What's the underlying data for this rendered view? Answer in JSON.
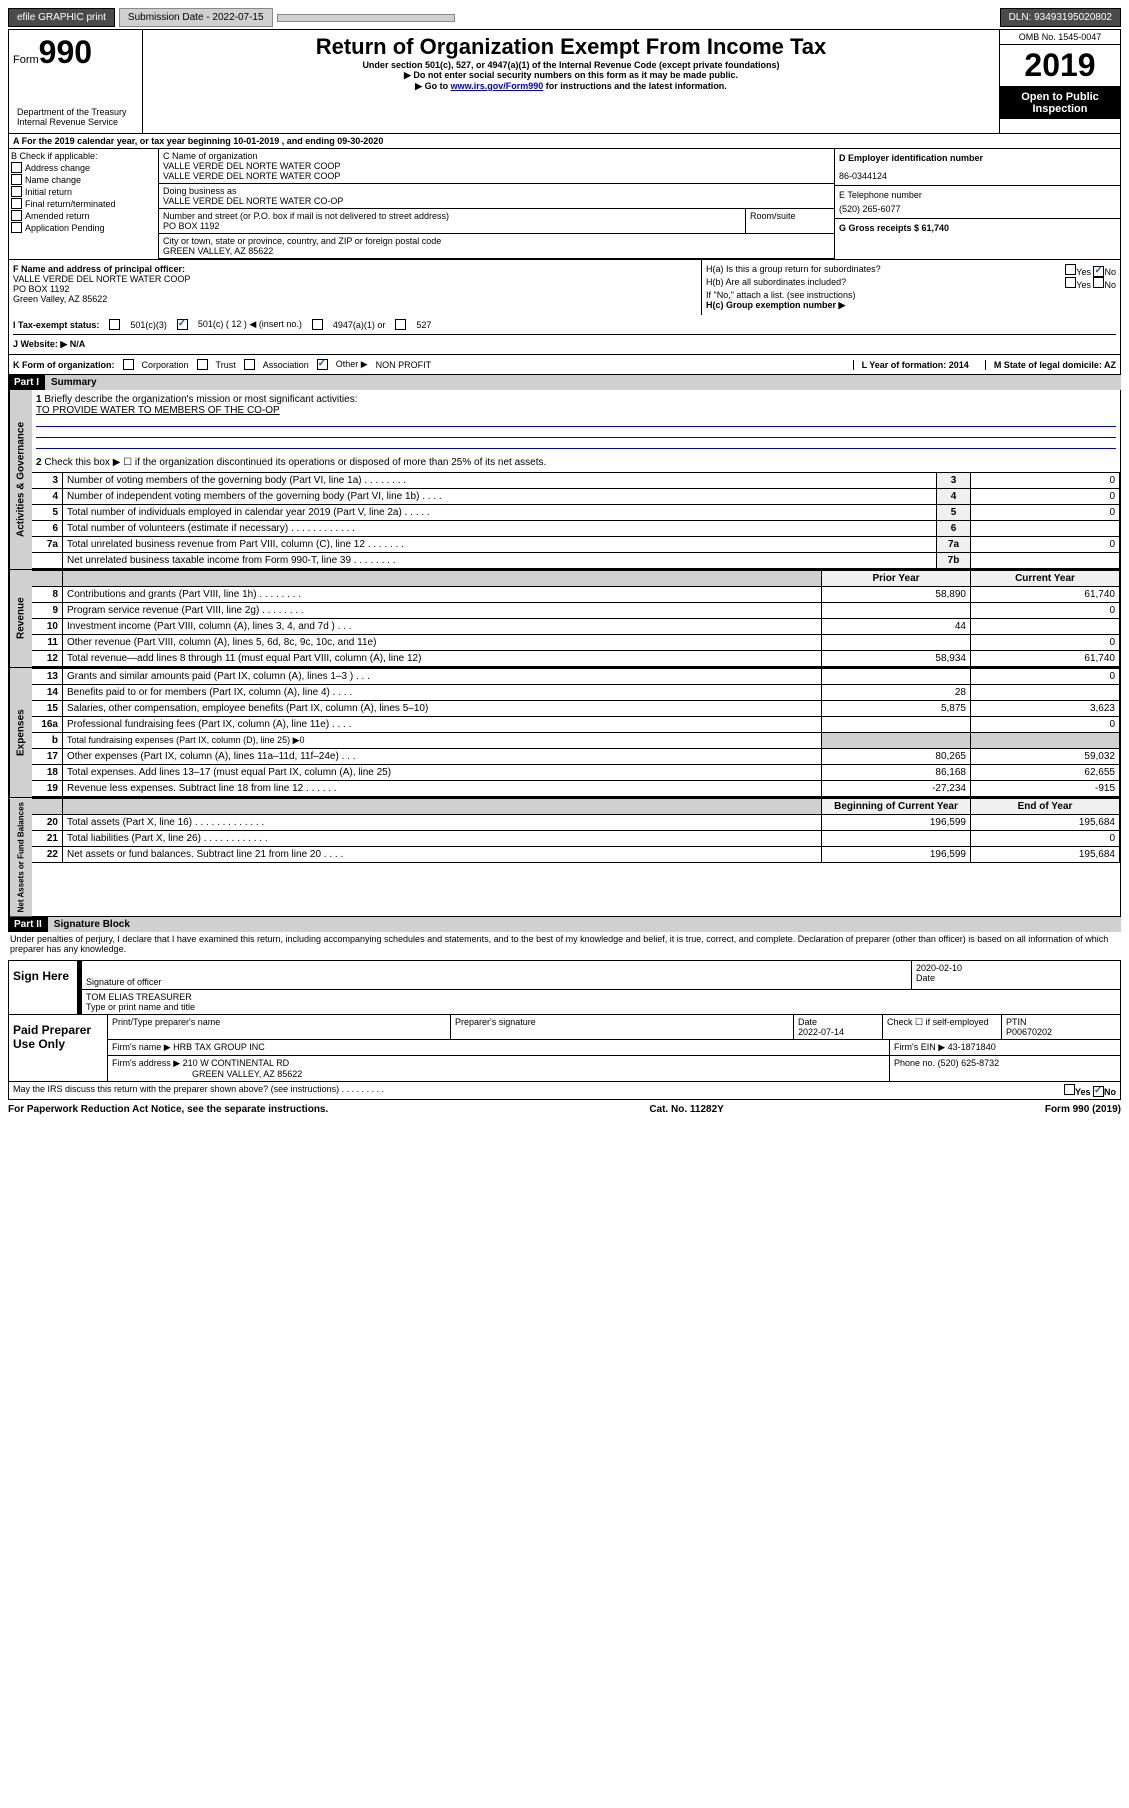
{
  "topbar": {
    "efile": "efile GRAPHIC print",
    "submission_label": "Submission Date - 2022-07-15",
    "dln": "DLN: 93493195020802"
  },
  "header": {
    "form_word": "Form",
    "form_num": "990",
    "title": "Return of Organization Exempt From Income Tax",
    "sub1": "Under section 501(c), 527, or 4947(a)(1) of the Internal Revenue Code (except private foundations)",
    "sub2": "▶ Do not enter social security numbers on this form as it may be made public.",
    "sub3_pre": "▶ Go to ",
    "sub3_link": "www.irs.gov/Form990",
    "sub3_post": " for instructions and the latest information.",
    "omb": "OMB No. 1545-0047",
    "year": "2019",
    "open": "Open to Public Inspection",
    "dept": "Department of the Treasury\nInternal Revenue Service"
  },
  "line_a": "A For the 2019 calendar year, or tax year beginning 10-01-2019    , and ending 09-30-2020",
  "col_b": {
    "label": "B Check if applicable:",
    "items": [
      "Address change",
      "Name change",
      "Initial return",
      "Final return/terminated",
      "Amended return",
      "Application Pending"
    ]
  },
  "col_c": {
    "name_label": "C Name of organization",
    "name1": "VALLE VERDE DEL NORTE WATER COOP",
    "name2": "VALLE VERDE DEL NORTE WATER COOP",
    "dba_label": "Doing business as",
    "dba": "VALLE VERDE DEL NORTE WATER CO-OP",
    "addr_label": "Number and street (or P.O. box if mail is not delivered to street address)",
    "addr": "PO BOX 1192",
    "room_label": "Room/suite",
    "city_label": "City or town, state or province, country, and ZIP or foreign postal code",
    "city": "GREEN VALLEY, AZ  85622"
  },
  "col_d": {
    "ein_label": "D Employer identification number",
    "ein": "86-0344124",
    "phone_label": "E Telephone number",
    "phone": "(520) 265-6077",
    "gross_label": "G Gross receipts $ 61,740"
  },
  "f_box": {
    "label": "F Name and address of principal officer:",
    "name": "VALLE VERDE DEL NORTE WATER COOP",
    "addr1": "PO BOX 1192",
    "addr2": "Green Valley, AZ  85622"
  },
  "h_box": {
    "a": "H(a)  Is this a group return for subordinates?",
    "b": "H(b)  Are all subordinates included?",
    "b_note": "If \"No,\" attach a list. (see instructions)",
    "c": "H(c)  Group exemption number ▶",
    "yes": "Yes",
    "no": "No"
  },
  "status": {
    "i": "I  Tax-exempt status:",
    "opt1": "501(c)(3)",
    "opt2_pre": "501(c) ( 12 ) ◀ (insert no.)",
    "opt3": "4947(a)(1) or",
    "opt4": "527",
    "j": "J  Website: ▶  N/A"
  },
  "k_row": {
    "k": "K Form of organization:",
    "corp": "Corporation",
    "trust": "Trust",
    "assoc": "Association",
    "other": "Other ▶",
    "other_val": "NON PROFIT",
    "l": "L Year of formation: 2014",
    "m": "M State of legal domicile: AZ"
  },
  "part1": {
    "header": "Part I",
    "title": "Summary",
    "line1": "Briefly describe the organization's mission or most significant activities:",
    "mission": "TO PROVIDE WATER TO MEMBERS OF THE CO-OP",
    "line2": "Check this box ▶ ☐  if the organization discontinued its operations or disposed of more than 25% of its net assets.",
    "vert_gov": "Activities & Governance",
    "vert_rev": "Revenue",
    "vert_exp": "Expenses",
    "vert_net": "Net Assets or Fund Balances",
    "prior": "Prior Year",
    "current": "Current Year",
    "begin": "Beginning of Current Year",
    "end": "End of Year"
  },
  "gov_lines": [
    {
      "n": "3",
      "d": "Number of voting members of the governing body (Part VI, line 1a)  .    .    .    .    .    .    .    .",
      "c": "3",
      "v": "0"
    },
    {
      "n": "4",
      "d": "Number of independent voting members of the governing body (Part VI, line 1b)  .    .    .    .",
      "c": "4",
      "v": "0"
    },
    {
      "n": "5",
      "d": "Total number of individuals employed in calendar year 2019 (Part V, line 2a)  .    .    .    .    .",
      "c": "5",
      "v": "0"
    },
    {
      "n": "6",
      "d": "Total number of volunteers (estimate if necessary)  .    .    .    .    .    .    .    .    .    .    .    .",
      "c": "6",
      "v": ""
    },
    {
      "n": "7a",
      "d": "Total unrelated business revenue from Part VIII, column (C), line 12  .    .    .    .    .    .    .",
      "c": "7a",
      "v": "0"
    },
    {
      "n": "",
      "d": "Net unrelated business taxable income from Form 990-T, line 39  .    .    .    .    .    .    .    .",
      "c": "7b",
      "v": ""
    }
  ],
  "rev_lines": [
    {
      "n": "8",
      "d": "Contributions and grants (Part VIII, line 1h)  .    .    .    .    .    .    .    .",
      "p": "58,890",
      "c": "61,740"
    },
    {
      "n": "9",
      "d": "Program service revenue (Part VIII, line 2g)  .    .    .    .    .    .    .    .",
      "p": "",
      "c": "0"
    },
    {
      "n": "10",
      "d": "Investment income (Part VIII, column (A), lines 3, 4, and 7d )  .    .    .",
      "p": "44",
      "c": ""
    },
    {
      "n": "11",
      "d": "Other revenue (Part VIII, column (A), lines 5, 6d, 8c, 9c, 10c, and 11e)",
      "p": "",
      "c": "0"
    },
    {
      "n": "12",
      "d": "Total revenue—add lines 8 through 11 (must equal Part VIII, column (A), line 12)",
      "p": "58,934",
      "c": "61,740"
    }
  ],
  "exp_lines": [
    {
      "n": "13",
      "d": "Grants and similar amounts paid (Part IX, column (A), lines 1–3 )  .    .    .",
      "p": "",
      "c": "0"
    },
    {
      "n": "14",
      "d": "Benefits paid to or for members (Part IX, column (A), line 4)  .    .    .    .",
      "p": "28",
      "c": ""
    },
    {
      "n": "15",
      "d": "Salaries, other compensation, employee benefits (Part IX, column (A), lines 5–10)",
      "p": "5,875",
      "c": "3,623"
    },
    {
      "n": "16a",
      "d": "Professional fundraising fees (Part IX, column (A), line 11e)  .    .    .    .",
      "p": "",
      "c": "0"
    },
    {
      "n": "b",
      "d": "Total fundraising expenses (Part IX, column (D), line 25) ▶0",
      "p": "",
      "c": ""
    },
    {
      "n": "17",
      "d": "Other expenses (Part IX, column (A), lines 11a–11d, 11f–24e)  .    .    .",
      "p": "80,265",
      "c": "59,032"
    },
    {
      "n": "18",
      "d": "Total expenses. Add lines 13–17 (must equal Part IX, column (A), line 25)",
      "p": "86,168",
      "c": "62,655"
    },
    {
      "n": "19",
      "d": "Revenue less expenses. Subtract line 18 from line 12 .    .    .    .    .    .",
      "p": "-27,234",
      "c": "-915"
    }
  ],
  "net_lines": [
    {
      "n": "20",
      "d": "Total assets (Part X, line 16)  .    .    .    .    .    .    .    .    .    .    .    .    .",
      "p": "196,599",
      "c": "195,684"
    },
    {
      "n": "21",
      "d": "Total liabilities (Part X, line 26)  .    .    .    .    .    .    .    .    .    .    .    .",
      "p": "",
      "c": "0"
    },
    {
      "n": "22",
      "d": "Net assets or fund balances. Subtract line 21 from line 20 .    .    .    .",
      "p": "196,599",
      "c": "195,684"
    }
  ],
  "part2": {
    "header": "Part II",
    "title": "Signature Block",
    "declaration": "Under penalties of perjury, I declare that I have examined this return, including accompanying schedules and statements, and to the best of my knowledge and belief, it is true, correct, and complete. Declaration of preparer (other than officer) is based on all information of which preparer has any knowledge."
  },
  "sign": {
    "here": "Sign Here",
    "sig_officer": "Signature of officer",
    "date_label": "Date",
    "date": "2020-02-10",
    "name": "TOM ELIAS  TREASURER",
    "name_label": "Type or print name and title"
  },
  "paid": {
    "label": "Paid Preparer Use Only",
    "prep_name_label": "Print/Type preparer's name",
    "prep_sig_label": "Preparer's signature",
    "prep_date_label": "Date",
    "prep_date": "2022-07-14",
    "self_label": "Check ☐ if self-employed",
    "ptin_label": "PTIN",
    "ptin": "P00670202",
    "firm_name_label": "Firm's name    ▶",
    "firm_name": "HRB TAX GROUP INC",
    "firm_ein_label": "Firm's EIN ▶",
    "firm_ein": "43-1871840",
    "firm_addr_label": "Firm's address ▶",
    "firm_addr1": "210 W CONTINENTAL RD",
    "firm_addr2": "GREEN VALLEY, AZ  85622",
    "phone_label": "Phone no.",
    "phone": "(520) 625-8732"
  },
  "discuss": "May the IRS discuss this return with the preparer shown above? (see instructions)    .    .    .    .    .    .    .    .    .",
  "footer": {
    "left": "For Paperwork Reduction Act Notice, see the separate instructions.",
    "mid": "Cat. No. 11282Y",
    "right": "Form 990 (2019)"
  }
}
